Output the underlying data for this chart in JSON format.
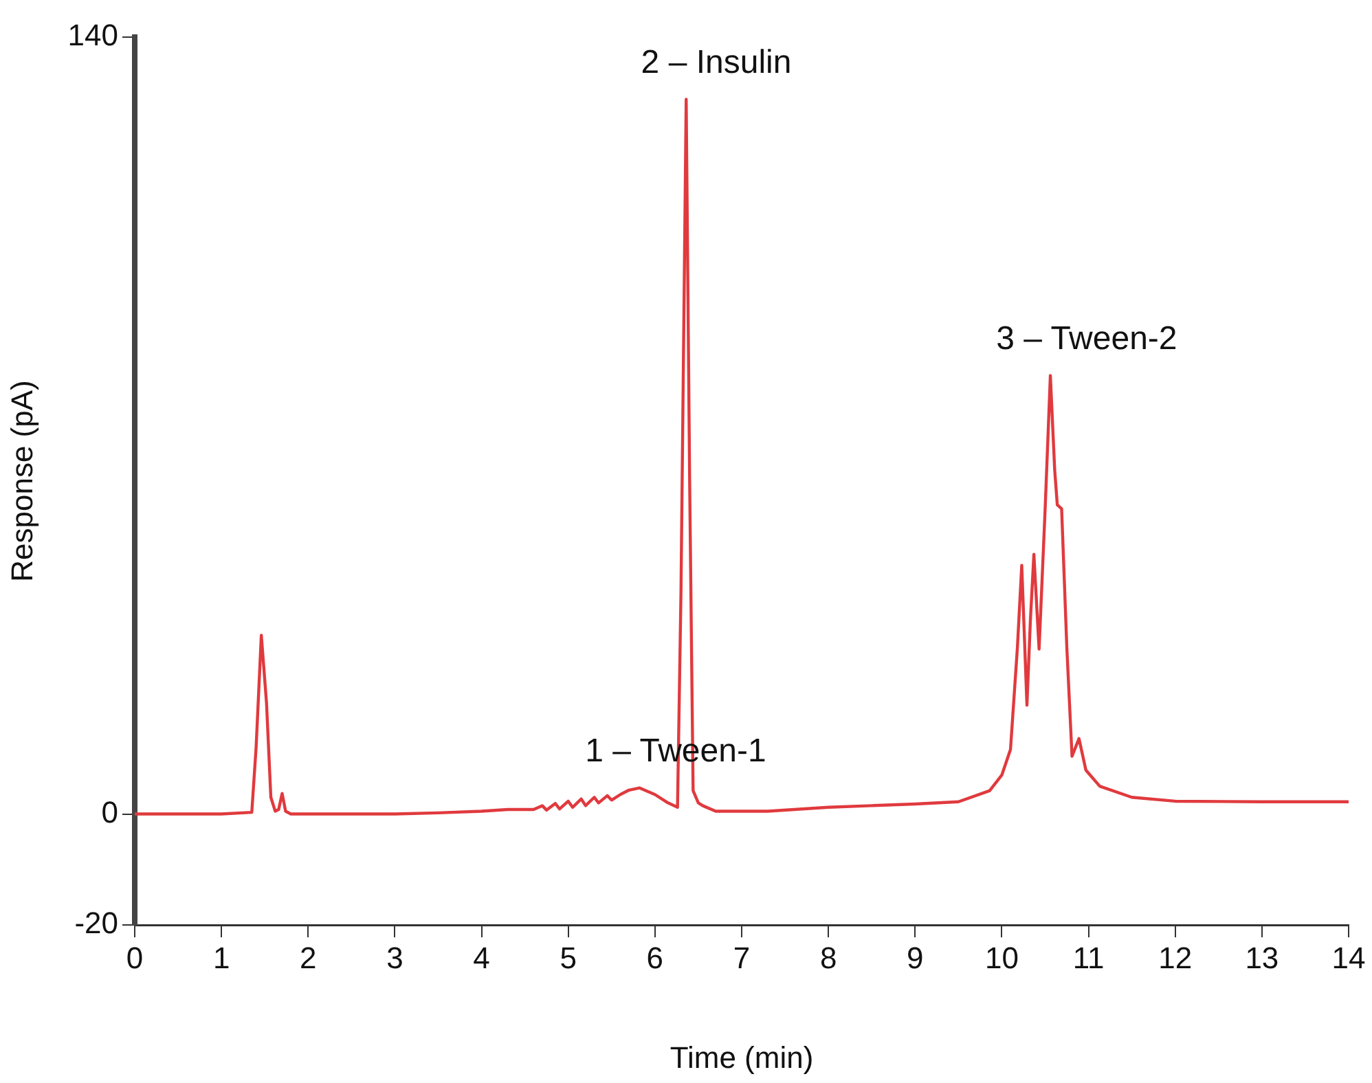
{
  "chart_data": {
    "type": "line",
    "xlabel": "Time (min)",
    "ylabel": "Response (pA)",
    "xlim": [
      0,
      14
    ],
    "xticks": [
      0,
      1,
      2,
      3,
      4,
      5,
      6,
      7,
      8,
      9,
      10,
      11,
      12,
      13,
      14
    ],
    "ylim": [
      -20,
      140
    ],
    "yticks": [
      -20,
      0,
      140
    ],
    "grid": false,
    "legend": false,
    "marker": "none",
    "line_style": "solid",
    "series": [
      {
        "color": "#e03a3e",
        "x": [
          0,
          1,
          1.35,
          1.4,
          1.46,
          1.52,
          1.57,
          1.62,
          1.66,
          1.7,
          1.74,
          1.8,
          2.5,
          3,
          3.5,
          4,
          4.3,
          4.6,
          4.7,
          4.75,
          4.85,
          4.9,
          5.0,
          5.05,
          5.15,
          5.2,
          5.3,
          5.35,
          5.45,
          5.5,
          5.6,
          5.7,
          5.82,
          6.0,
          6.15,
          6.26,
          6.3,
          6.36,
          6.4,
          6.44,
          6.5,
          6.55,
          6.7,
          7.3,
          8,
          8.5,
          9,
          9.5,
          9.86,
          10.0,
          10.1,
          10.18,
          10.23,
          10.29,
          10.33,
          10.37,
          10.43,
          10.5,
          10.56,
          10.61,
          10.64,
          10.69,
          10.75,
          10.81,
          10.89,
          10.97,
          11.13,
          11.5,
          12,
          13,
          14
        ],
        "values": [
          0,
          0,
          0.3,
          12,
          32.2,
          20,
          3,
          0.5,
          0.8,
          3.7,
          0.5,
          0,
          0,
          0,
          0.2,
          0.5,
          0.8,
          0.8,
          1.5,
          0.7,
          1.9,
          0.9,
          2.3,
          1.2,
          2.7,
          1.5,
          3.0,
          2.0,
          3.3,
          2.5,
          3.5,
          4.3,
          4.7,
          3.5,
          2.0,
          1.2,
          40,
          128.8,
          60,
          4.2,
          2.0,
          1.5,
          0.5,
          0.5,
          1.2,
          1.5,
          1.8,
          2.2,
          4.2,
          7,
          11.6,
          30,
          44.8,
          19.6,
          35,
          46.8,
          29.7,
          55,
          79.0,
          62,
          55.7,
          55,
          30,
          10.4,
          13.6,
          7.9,
          5.0,
          3.0,
          2.3,
          2.2,
          2.2
        ]
      }
    ],
    "annotations": [
      {
        "text": "1 – Tween-1",
        "x": 5.82,
        "y": 4.7
      },
      {
        "text": "2 – Insulin",
        "x": 6.36,
        "y": 128.8
      },
      {
        "text": "3 – Tween-2",
        "x": 10.56,
        "y": 79.0
      }
    ]
  }
}
